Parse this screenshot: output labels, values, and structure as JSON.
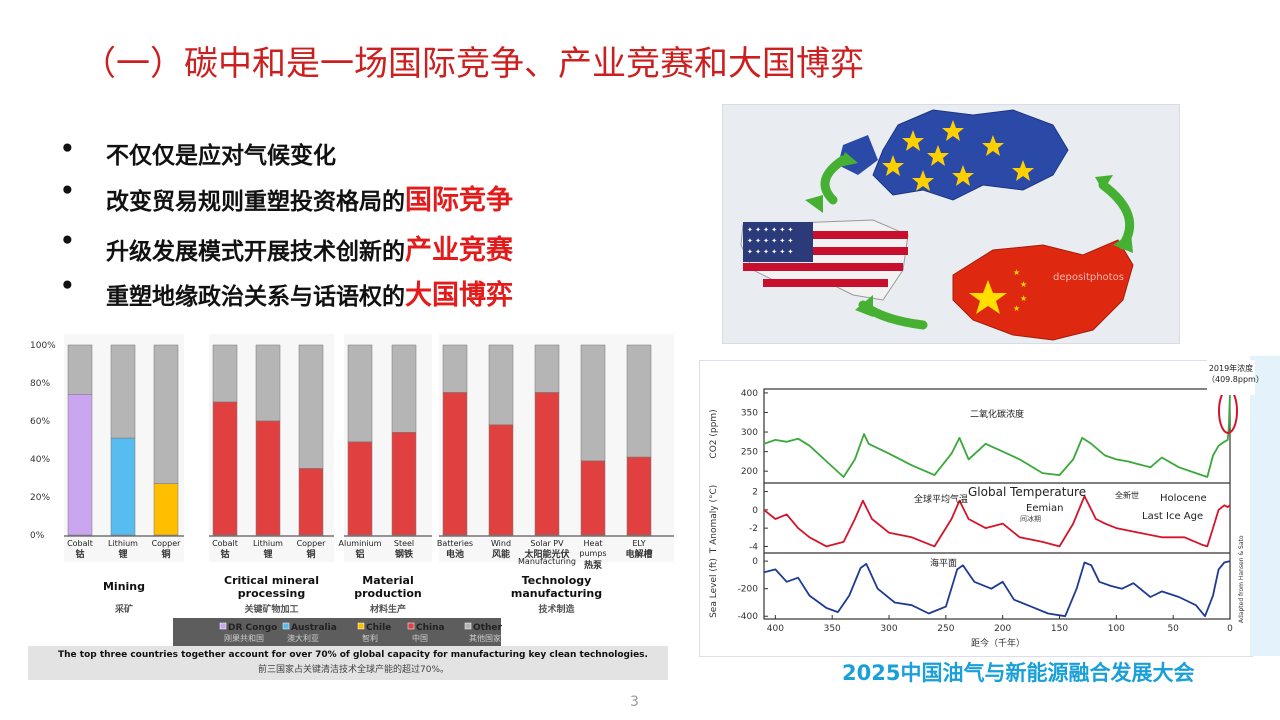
{
  "title": "（一）碳中和是一场国际竞争、产业竞赛和大国博弈",
  "bullets": [
    {
      "marker": "•",
      "text": "不仅仅是应对气候变化",
      "highlight": ""
    },
    {
      "marker": "•",
      "text": "改变贸易规则重塑投资格局的",
      "highlight": "国际竞争"
    },
    {
      "marker": "•",
      "text": "升级发展模式开展技术创新的",
      "highlight": "产业竞赛"
    },
    {
      "marker": "•",
      "text": "重塑地缘政治关系与话语权的",
      "highlight": "大国博弈"
    }
  ],
  "map_image": {
    "watermark": "depositphotos"
  },
  "colors": {
    "title": "#cc1f1f",
    "highlight": "#e31b1b",
    "brand": "#1aa0d8",
    "china": "#e04040",
    "drcongo": "#c9a6ef",
    "australia": "#57bdf0",
    "chile": "#ffbf00",
    "other": "#b5b5b5",
    "co2": "#3aa83a",
    "temp": "#d4142a",
    "sea": "#1f3a93"
  },
  "chart_data": [
    {
      "type": "bar",
      "stacked": true,
      "yaxis_ticks": [
        "0%",
        "20%",
        "40%",
        "60%",
        "80%",
        "100%"
      ],
      "ylim": [
        0,
        100
      ],
      "groups": [
        {
          "title": "Mining",
          "subtitle": "采矿",
          "bars": [
            {
              "label": "Cobalt",
              "cn": "钴",
              "country": "DR Congo",
              "value": 74
            },
            {
              "label": "Lithium",
              "cn": "锂",
              "country": "Australia",
              "value": 51
            },
            {
              "label": "Copper",
              "cn": "铜",
              "country": "Chile",
              "value": 27
            }
          ]
        },
        {
          "title": "Critical mineral processing",
          "subtitle": "关键矿物加工",
          "bars": [
            {
              "label": "Cobalt",
              "cn": "钴",
              "country": "China",
              "value": 70
            },
            {
              "label": "Lithium",
              "cn": "锂",
              "country": "China",
              "value": 60
            },
            {
              "label": "Copper",
              "cn": "铜",
              "country": "China",
              "value": 35
            }
          ]
        },
        {
          "title": "Material production",
          "subtitle": "材料生产",
          "bars": [
            {
              "label": "Aluminium",
              "cn": "铝",
              "country": "China",
              "value": 49
            },
            {
              "label": "Steel",
              "cn": "钢铁",
              "country": "China",
              "value": 54
            }
          ]
        },
        {
          "title": "Technology manufacturing",
          "subtitle": "技术制造",
          "bars": [
            {
              "label": "Batteries",
              "cn": "电池",
              "country": "China",
              "value": 75
            },
            {
              "label": "Wind",
              "cn": "风能",
              "country": "China",
              "value": 58
            },
            {
              "label": "Solar PV",
              "sub": "Manufacturing",
              "cn": "太阳能光伏",
              "country": "China",
              "value": 75
            },
            {
              "label": "Heat pumps",
              "cn": "热泵",
              "country": "China",
              "value": 39
            },
            {
              "label": "ELY",
              "cn": "电解槽",
              "country": "China",
              "value": 41
            }
          ]
        }
      ],
      "legend": [
        {
          "name": "DR Congo",
          "cn": "刚果共和国"
        },
        {
          "name": "Australia",
          "cn": "澳大利亚"
        },
        {
          "name": "Chile",
          "cn": "智利"
        },
        {
          "name": "China",
          "cn": "中国"
        },
        {
          "name": "Other",
          "cn": "其他国家"
        }
      ],
      "note": "The top three countries together account for over 70% of global capacity for manufacturing key clean technologies.",
      "note_cn": "前三国家占关键清洁技术全球产能的超过70%。"
    },
    {
      "type": "line",
      "x_ticks": [
        "400",
        "350",
        "300",
        "250",
        "200",
        "150",
        "100",
        "50",
        "0"
      ],
      "xlim": [
        410,
        0
      ],
      "xlabel": "距今（千年）",
      "credit": "Adapted from Hansen & Sato",
      "callout": "2019年浓度（409.8ppm）",
      "series": [
        {
          "name": "二氧化碳浓度",
          "ylabel": "CO2 (ppm)",
          "y_ticks": [
            "200",
            "250",
            "300",
            "350",
            "400"
          ],
          "ylim": [
            180,
            410
          ],
          "points": [
            [
              410,
              270
            ],
            [
              400,
              280
            ],
            [
              390,
              275
            ],
            [
              380,
              283
            ],
            [
              370,
              265
            ],
            [
              355,
              225
            ],
            [
              340,
              185
            ],
            [
              330,
              230
            ],
            [
              322,
              295
            ],
            [
              318,
              270
            ],
            [
              300,
              245
            ],
            [
              280,
              215
            ],
            [
              260,
              190
            ],
            [
              245,
              245
            ],
            [
              238,
              285
            ],
            [
              230,
              230
            ],
            [
              215,
              270
            ],
            [
              200,
              250
            ],
            [
              185,
              230
            ],
            [
              165,
              195
            ],
            [
              150,
              190
            ],
            [
              138,
              230
            ],
            [
              130,
              285
            ],
            [
              122,
              270
            ],
            [
              110,
              240
            ],
            [
              100,
              230
            ],
            [
              90,
              225
            ],
            [
              70,
              210
            ],
            [
              60,
              235
            ],
            [
              45,
              210
            ],
            [
              30,
              195
            ],
            [
              20,
              185
            ],
            [
              15,
              240
            ],
            [
              10,
              265
            ],
            [
              5,
              275
            ],
            [
              2,
              280
            ],
            [
              1,
              315
            ],
            [
              0,
              405
            ]
          ]
        },
        {
          "name": "全球平均气温",
          "label_en": "Global Temperature",
          "ylabel": "T Anomaly (°C)",
          "y_ticks": [
            "2",
            "0",
            "-2",
            "-4"
          ],
          "ylim": [
            -4.5,
            2.5
          ],
          "annotations": [
            "Eemian",
            "Last Ice Age",
            "Holocene",
            "全新世",
            "间冰期"
          ],
          "points": [
            [
              410,
              0
            ],
            [
              400,
              -1
            ],
            [
              390,
              -0.5
            ],
            [
              380,
              -2
            ],
            [
              370,
              -3
            ],
            [
              355,
              -4
            ],
            [
              340,
              -3.5
            ],
            [
              330,
              -1
            ],
            [
              323,
              1
            ],
            [
              315,
              -1
            ],
            [
              300,
              -2.5
            ],
            [
              280,
              -3
            ],
            [
              260,
              -4
            ],
            [
              245,
              -1
            ],
            [
              238,
              1
            ],
            [
              230,
              -1
            ],
            [
              215,
              -2
            ],
            [
              200,
              -1.5
            ],
            [
              185,
              -3
            ],
            [
              165,
              -3.5
            ],
            [
              150,
              -4
            ],
            [
              138,
              -1.5
            ],
            [
              128,
              1.5
            ],
            [
              118,
              -1
            ],
            [
              110,
              -1.5
            ],
            [
              100,
              -2
            ],
            [
              80,
              -2.5
            ],
            [
              60,
              -3
            ],
            [
              40,
              -3
            ],
            [
              25,
              -3.8
            ],
            [
              20,
              -4
            ],
            [
              15,
              -2
            ],
            [
              10,
              0
            ],
            [
              5,
              0.5
            ],
            [
              2,
              0.3
            ],
            [
              0,
              0.5
            ]
          ]
        },
        {
          "name": "海平面",
          "ylabel": "Sea Level (ft)",
          "y_ticks": [
            "0",
            "-200",
            "-400"
          ],
          "ylim": [
            -420,
            30
          ],
          "points": [
            [
              410,
              -80
            ],
            [
              400,
              -60
            ],
            [
              390,
              -150
            ],
            [
              380,
              -120
            ],
            [
              370,
              -250
            ],
            [
              355,
              -340
            ],
            [
              345,
              -370
            ],
            [
              335,
              -250
            ],
            [
              325,
              -50
            ],
            [
              320,
              -20
            ],
            [
              310,
              -200
            ],
            [
              295,
              -300
            ],
            [
              280,
              -320
            ],
            [
              265,
              -380
            ],
            [
              250,
              -330
            ],
            [
              240,
              -60
            ],
            [
              235,
              -30
            ],
            [
              225,
              -150
            ],
            [
              210,
              -200
            ],
            [
              200,
              -150
            ],
            [
              190,
              -280
            ],
            [
              175,
              -330
            ],
            [
              160,
              -380
            ],
            [
              145,
              -400
            ],
            [
              135,
              -200
            ],
            [
              128,
              -10
            ],
            [
              122,
              -30
            ],
            [
              115,
              -150
            ],
            [
              105,
              -180
            ],
            [
              95,
              -200
            ],
            [
              85,
              -160
            ],
            [
              70,
              -260
            ],
            [
              60,
              -220
            ],
            [
              45,
              -260
            ],
            [
              30,
              -320
            ],
            [
              22,
              -400
            ],
            [
              15,
              -250
            ],
            [
              10,
              -60
            ],
            [
              5,
              -10
            ],
            [
              0,
              0
            ]
          ]
        }
      ]
    }
  ],
  "footer": {
    "brand": "2025中国油气与新能源融合发展大会"
  },
  "page_number": "3"
}
